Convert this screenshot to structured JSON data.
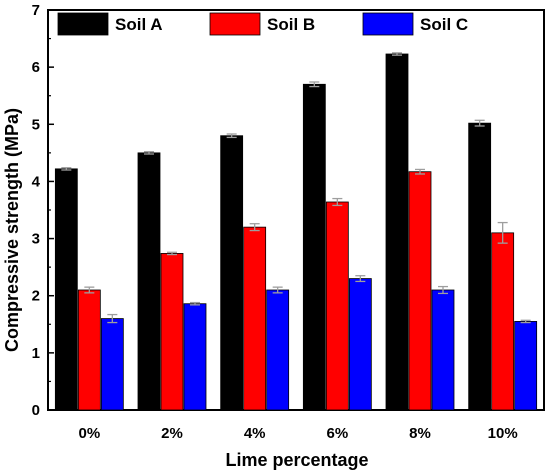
{
  "chart_data": {
    "type": "bar",
    "title": "",
    "xlabel": "Lime percentage",
    "ylabel": "Compressive strength (MPa)",
    "categories": [
      "0%",
      "2%",
      "4%",
      "6%",
      "8%",
      "10%"
    ],
    "ylim": [
      0,
      7
    ],
    "yticks": [
      0,
      1,
      2,
      3,
      4,
      5,
      6,
      7
    ],
    "legend_position": "top",
    "grid": false,
    "series": [
      {
        "name": "Soil A",
        "color": "#000000",
        "values": [
          4.22,
          4.5,
          4.8,
          5.7,
          6.23,
          5.02
        ],
        "errors": [
          0.02,
          0.02,
          0.03,
          0.04,
          0.02,
          0.05
        ]
      },
      {
        "name": "Soil B",
        "color": "#ff0000",
        "values": [
          2.1,
          2.74,
          3.2,
          3.64,
          4.17,
          3.1
        ],
        "errors": [
          0.05,
          0.02,
          0.06,
          0.06,
          0.04,
          0.18
        ]
      },
      {
        "name": "Soil C",
        "color": "#0000ff",
        "values": [
          1.6,
          1.86,
          2.1,
          2.3,
          2.1,
          1.55
        ],
        "errors": [
          0.07,
          0.02,
          0.05,
          0.05,
          0.06,
          0.02
        ]
      }
    ]
  }
}
